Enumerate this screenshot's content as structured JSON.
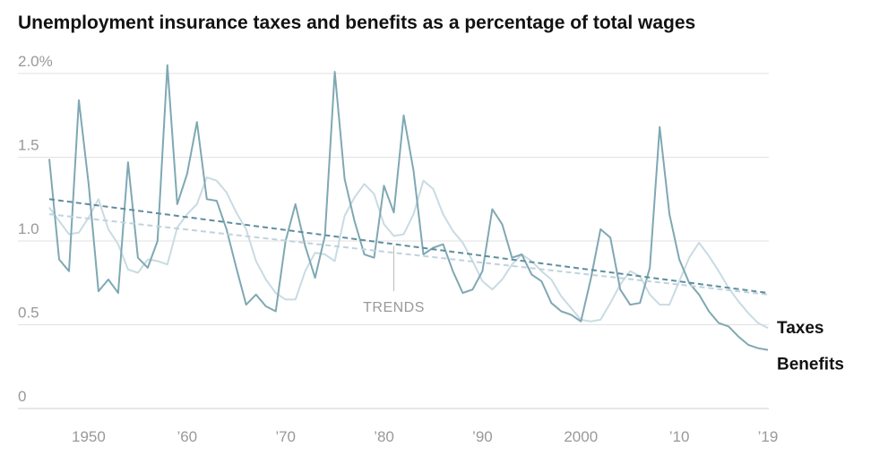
{
  "chart_data": {
    "type": "line",
    "title": "Unemployment insurance taxes and benefits as a percentage of total wages",
    "ylim": [
      0,
      2.0
    ],
    "y_ticks": [
      {
        "value": 0,
        "label": "0"
      },
      {
        "value": 0.5,
        "label": "0.5"
      },
      {
        "value": 1.0,
        "label": "1.0"
      },
      {
        "value": 1.5,
        "label": "1.5"
      },
      {
        "value": 2.0,
        "label": "2.0%"
      }
    ],
    "xlim": [
      1946,
      2019
    ],
    "x_ticks": [
      {
        "value": 1950,
        "label": "1950"
      },
      {
        "value": 1960,
        "label": "’60"
      },
      {
        "value": 1970,
        "label": "’70"
      },
      {
        "value": 1980,
        "label": "’80"
      },
      {
        "value": 1990,
        "label": "’90"
      },
      {
        "value": 2000,
        "label": "2000"
      },
      {
        "value": 2010,
        "label": "’10"
      },
      {
        "value": 2019,
        "label": "’19"
      }
    ],
    "grid": true,
    "annotation": {
      "text": "TRENDS",
      "x": 1981,
      "y": 0.7
    },
    "series": [
      {
        "name": "Benefits",
        "color": "#7fa8b3",
        "x": [
          1946,
          1947,
          1948,
          1949,
          1950,
          1951,
          1952,
          1953,
          1954,
          1955,
          1956,
          1957,
          1958,
          1959,
          1960,
          1961,
          1962,
          1963,
          1964,
          1965,
          1966,
          1967,
          1968,
          1969,
          1970,
          1971,
          1972,
          1973,
          1974,
          1975,
          1976,
          1977,
          1978,
          1979,
          1980,
          1981,
          1982,
          1983,
          1984,
          1985,
          1986,
          1987,
          1988,
          1989,
          1990,
          1991,
          1992,
          1993,
          1994,
          1995,
          1996,
          1997,
          1998,
          1999,
          2000,
          2001,
          2002,
          2003,
          2004,
          2005,
          2006,
          2007,
          2008,
          2009,
          2010,
          2011,
          2012,
          2013,
          2014,
          2015,
          2016,
          2017,
          2018,
          2019
        ],
        "values": [
          1.49,
          0.89,
          0.82,
          1.84,
          1.34,
          0.7,
          0.77,
          0.69,
          1.47,
          0.9,
          0.84,
          1.0,
          2.05,
          1.22,
          1.4,
          1.71,
          1.25,
          1.24,
          1.07,
          0.84,
          0.62,
          0.68,
          0.61,
          0.58,
          1.0,
          1.22,
          0.97,
          0.78,
          1.03,
          2.01,
          1.37,
          1.12,
          0.92,
          0.9,
          1.33,
          1.17,
          1.75,
          1.42,
          0.92,
          0.96,
          0.98,
          0.82,
          0.69,
          0.71,
          0.82,
          1.19,
          1.1,
          0.9,
          0.92,
          0.8,
          0.76,
          0.63,
          0.58,
          0.56,
          0.52,
          0.77,
          1.07,
          1.02,
          0.71,
          0.62,
          0.63,
          0.84,
          1.68,
          1.16,
          0.89,
          0.75,
          0.68,
          0.58,
          0.51,
          0.49,
          0.43,
          0.38,
          0.36,
          0.35
        ]
      },
      {
        "name": "Taxes",
        "color": "#c9dbe3",
        "x": [
          1946,
          1947,
          1948,
          1949,
          1950,
          1951,
          1952,
          1953,
          1954,
          1955,
          1956,
          1957,
          1958,
          1959,
          1960,
          1961,
          1962,
          1963,
          1964,
          1965,
          1966,
          1967,
          1968,
          1969,
          1970,
          1971,
          1972,
          1973,
          1974,
          1975,
          1976,
          1977,
          1978,
          1979,
          1980,
          1981,
          1982,
          1983,
          1984,
          1985,
          1986,
          1987,
          1988,
          1989,
          1990,
          1991,
          1992,
          1993,
          1994,
          1995,
          1996,
          1997,
          1998,
          1999,
          2000,
          2001,
          2002,
          2003,
          2004,
          2005,
          2006,
          2007,
          2008,
          2009,
          2010,
          2011,
          2012,
          2013,
          2014,
          2015,
          2016,
          2017,
          2018,
          2019
        ],
        "values": [
          1.2,
          1.12,
          1.04,
          1.05,
          1.14,
          1.25,
          1.07,
          0.98,
          0.83,
          0.81,
          0.89,
          0.88,
          0.86,
          1.08,
          1.16,
          1.22,
          1.38,
          1.36,
          1.29,
          1.17,
          1.07,
          0.88,
          0.77,
          0.69,
          0.65,
          0.65,
          0.82,
          0.93,
          0.92,
          0.88,
          1.15,
          1.26,
          1.34,
          1.28,
          1.1,
          1.03,
          1.04,
          1.16,
          1.36,
          1.31,
          1.16,
          1.06,
          0.99,
          0.88,
          0.76,
          0.71,
          0.77,
          0.86,
          0.92,
          0.88,
          0.82,
          0.77,
          0.67,
          0.6,
          0.53,
          0.52,
          0.53,
          0.63,
          0.74,
          0.82,
          0.79,
          0.68,
          0.62,
          0.62,
          0.76,
          0.9,
          0.99,
          0.91,
          0.82,
          0.72,
          0.64,
          0.57,
          0.51,
          0.48
        ]
      },
      {
        "name": "Benefits trend",
        "color": "#5f8ea0",
        "dashed": true,
        "x": [
          1946,
          2019
        ],
        "values": [
          1.25,
          0.69
        ]
      },
      {
        "name": "Taxes trend",
        "color": "#bfd3de",
        "dashed": true,
        "x": [
          1946,
          2019
        ],
        "values": [
          1.16,
          0.68
        ]
      }
    ],
    "labels": [
      {
        "text": "Taxes",
        "series": "Taxes"
      },
      {
        "text": "Benefits",
        "series": "Benefits"
      }
    ]
  }
}
